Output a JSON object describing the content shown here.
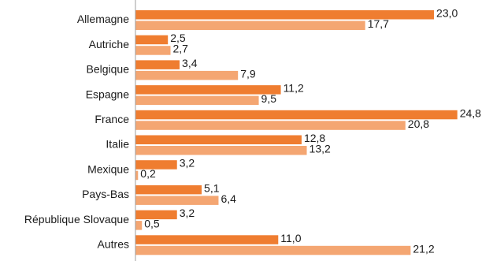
{
  "chart_data": {
    "type": "bar",
    "orientation": "horizontal",
    "categories": [
      "Allemagne",
      "Autriche",
      "Belgique",
      "Espagne",
      "France",
      "Italie",
      "Mexique",
      "Pays-Bas",
      "République Slovaque",
      "Autres"
    ],
    "series": [
      {
        "values": [
          23.0,
          2.5,
          3.4,
          11.2,
          24.8,
          12.8,
          3.2,
          5.1,
          3.2,
          11.0
        ],
        "labels": [
          "23,0",
          "2,5",
          "3,4",
          "11,2",
          "24,8",
          "12,8",
          "3,2",
          "5,1",
          "3,2",
          "11,0"
        ],
        "color": "#ef7d30"
      },
      {
        "values": [
          17.7,
          2.7,
          7.9,
          9.5,
          20.8,
          13.2,
          0.2,
          6.4,
          0.5,
          21.2
        ],
        "labels": [
          "17,7",
          "2,7",
          "7,9",
          "9,5",
          "20,8",
          "13,2",
          "0,2",
          "6,4",
          "0,5",
          "21,2"
        ],
        "color": "#f4a672"
      }
    ],
    "xlim": [
      0,
      25
    ],
    "axis_color": "#9c9c9c",
    "grid": false,
    "legend": false
  }
}
